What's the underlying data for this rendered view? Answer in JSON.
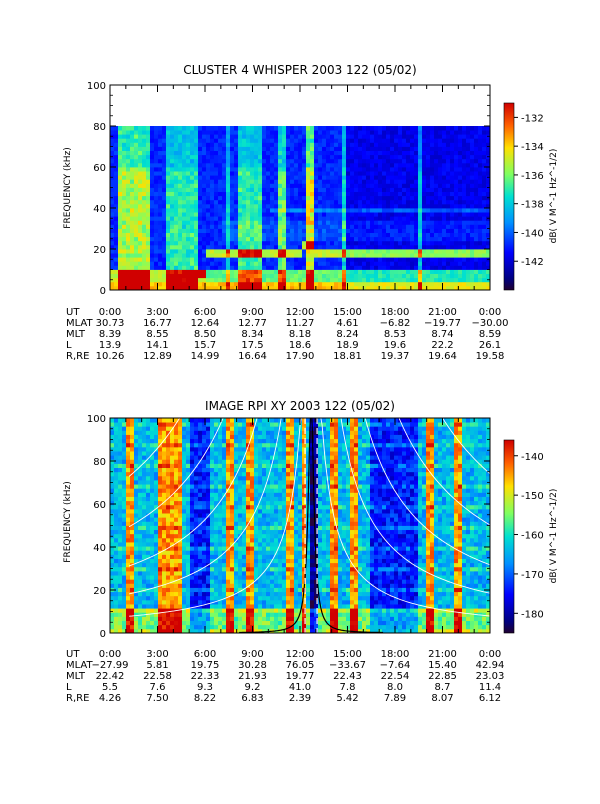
{
  "chart_data": [
    {
      "type": "heatmap",
      "title": "CLUSTER 4 WHISPER 2003 122 (05/02)",
      "ylabel": "FREQUENCY (kHz)",
      "ylim": [
        0,
        100
      ],
      "yticks": [
        "0",
        "20",
        "40",
        "60",
        "80",
        "100"
      ],
      "xlim_hours": [
        0,
        24
      ],
      "xticks": [
        "0:00",
        "3:00",
        "6:00",
        "9:00",
        "12:00",
        "15:00",
        "18:00",
        "21:00",
        "0:00"
      ],
      "data_ceiling_khz": 80,
      "colorbar": {
        "label": "dB( V M^-1 Hz^-1/2)",
        "range": [
          -144,
          -131
        ],
        "ticks": [
          "-132",
          "-134",
          "-136",
          "-138",
          "-140",
          "-142"
        ],
        "tick_values": [
          -132,
          -134,
          -136,
          -138,
          -140,
          -142
        ]
      },
      "ephemeris": {
        "rows": [
          {
            "label": "UT",
            "values": [
              "0:00",
              "3:00",
              "6:00",
              "9:00",
              "12:00",
              "15:00",
              "18:00",
              "21:00",
              "0:00"
            ]
          },
          {
            "label": "MLAT",
            "values": [
              "30.73",
              "16.77",
              "12.64",
              "12.77",
              "11.27",
              "4.61",
              "−6.82",
              "−19.77",
              "−30.00"
            ]
          },
          {
            "label": "MLT",
            "values": [
              "8.39",
              "8.55",
              "8.50",
              "8.34",
              "8.18",
              "8.24",
              "8.53",
              "8.74",
              "8.59"
            ]
          },
          {
            "label": "L",
            "values": [
              "13.9",
              "14.1",
              "15.7",
              "17.5",
              "18.6",
              "18.9",
              "19.6",
              "22.2",
              "26.1"
            ]
          },
          {
            "label": "R,RE",
            "values": [
              "10.26",
              "12.89",
              "14.99",
              "16.64",
              "17.90",
              "18.81",
              "19.37",
              "19.64",
              "19.58"
            ]
          }
        ]
      }
    },
    {
      "type": "heatmap",
      "title": "IMAGE RPI XY 2003 122 (05/02)",
      "ylabel": "FREQUENCY (kHz)",
      "ylim": [
        0,
        100
      ],
      "yticks": [
        "0",
        "20",
        "40",
        "60",
        "80",
        "100"
      ],
      "xlim_hours": [
        0,
        24
      ],
      "xticks": [
        "0:00",
        "3:00",
        "6:00",
        "9:00",
        "12:00",
        "15:00",
        "18:00",
        "21:00",
        "0:00"
      ],
      "colorbar": {
        "label": "dB( V M^-1 Hz^-1/2)",
        "range": [
          -185,
          -136
        ],
        "ticks": [
          "-140",
          "-150",
          "-160",
          "-170",
          "-180"
        ],
        "tick_values": [
          -140,
          -150,
          -160,
          -170,
          -180
        ]
      },
      "ephemeris": {
        "rows": [
          {
            "label": "UT",
            "values": [
              "0:00",
              "3:00",
              "6:00",
              "9:00",
              "12:00",
              "15:00",
              "18:00",
              "21:00",
              "0:00"
            ]
          },
          {
            "label": "MLAT",
            "values": [
              "−27.99",
              "5.81",
              "19.75",
              "30.28",
              "76.05",
              "−33.67",
              "−7.64",
              "15.40",
              "42.94"
            ]
          },
          {
            "label": "MLT",
            "values": [
              "22.42",
              "22.58",
              "22.33",
              "21.93",
              "19.77",
              "22.43",
              "22.54",
              "22.85",
              "23.03"
            ]
          },
          {
            "label": "L",
            "values": [
              "5.5",
              "7.6",
              "9.3",
              "9.2",
              "41.0",
              "7.8",
              "8.0",
              "8.7",
              "11.4"
            ]
          },
          {
            "label": "R,RE",
            "values": [
              "4.26",
              "7.50",
              "8.22",
              "6.83",
              "2.39",
              "5.42",
              "7.89",
              "8.07",
              "6.12"
            ]
          }
        ]
      }
    }
  ]
}
